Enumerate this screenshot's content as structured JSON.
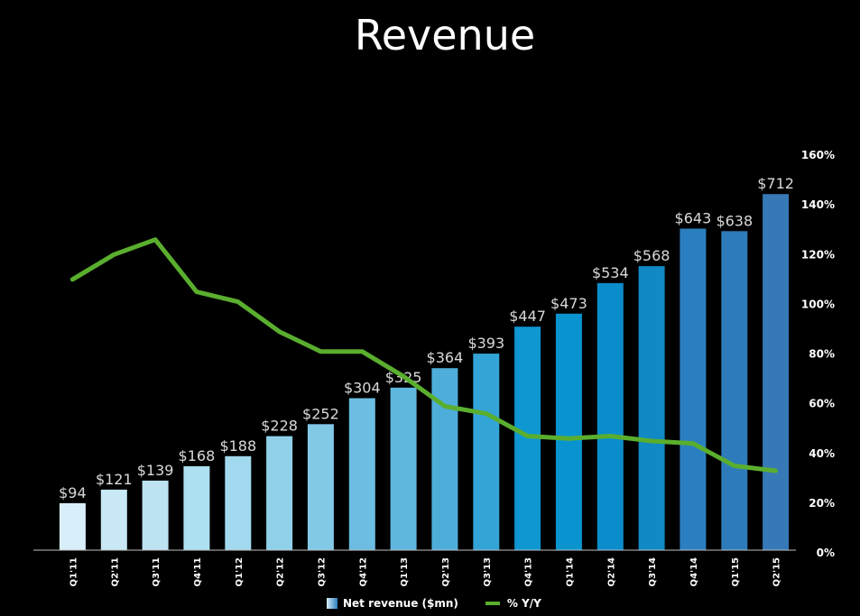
{
  "title": "Revenue",
  "legend": {
    "bar_label": "Net revenue ($mn)",
    "line_label": "% Y/Y"
  },
  "colors": {
    "line": "#5aae2e",
    "bar_light": "#d8eff9",
    "bar_dark": "#2b7fc0",
    "axis_text": "#ffffff",
    "value_label": "#d9d9d9"
  },
  "chart_data": {
    "type": "bar",
    "title": "Revenue",
    "categories": [
      "Q1'11",
      "Q2'11",
      "Q3'11",
      "Q4'11",
      "Q1'12",
      "Q2'12",
      "Q3'12",
      "Q4'12",
      "Q1'13",
      "Q2'13",
      "Q3'13",
      "Q4'13",
      "Q1'14",
      "Q2'14",
      "Q3'14",
      "Q4'14",
      "Q1'15",
      "Q2'15"
    ],
    "series": [
      {
        "name": "Net revenue ($mn)",
        "type": "bar",
        "values": [
          94,
          121,
          139,
          168,
          188,
          228,
          252,
          304,
          325,
          364,
          393,
          447,
          473,
          534,
          568,
          643,
          638,
          712
        ],
        "labels": [
          "$94",
          "$121",
          "$139",
          "$168",
          "$188",
          "$228",
          "$252",
          "$304",
          "$325",
          "$364",
          "$393",
          "$447",
          "$473",
          "$534",
          "$568",
          "$643",
          "$638",
          "$712"
        ]
      },
      {
        "name": "% Y/Y",
        "type": "line",
        "axis": "right",
        "values": [
          110,
          120,
          126,
          105,
          101,
          89,
          81,
          81,
          71,
          59,
          56,
          47,
          46,
          47,
          45,
          44,
          35,
          33
        ]
      }
    ],
    "y_right": {
      "ticks": [
        "0%",
        "20%",
        "40%",
        "60%",
        "80%",
        "100%",
        "120%",
        "140%",
        "160%"
      ],
      "ylim": [
        0,
        160
      ]
    },
    "bar_ylim": [
      0,
      790
    ],
    "legend_position": "bottom"
  }
}
